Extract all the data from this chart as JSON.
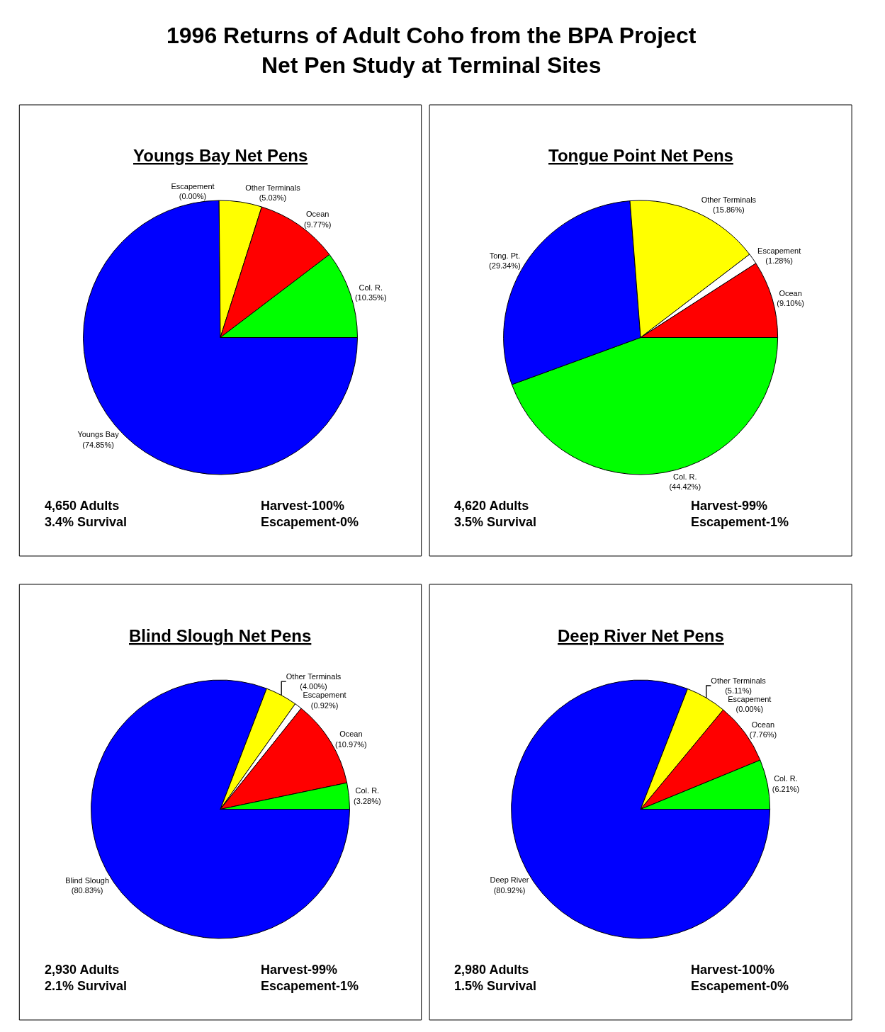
{
  "chart_data": [
    {
      "type": "other",
      "title": "1996 Returns of Adult Coho from the BPA Project\nNet Pen Study at Terminal Sites"
    },
    {
      "type": "pie",
      "title": "Youngs Bay Net Pens",
      "categories": [
        "Youngs Bay",
        "Escapement",
        "Other Terminals",
        "Ocean",
        "Col. R."
      ],
      "values": [
        74.85,
        0.0,
        5.03,
        9.77,
        10.35
      ],
      "value_labels": [
        "(74.85%)",
        "(0.00%)",
        "(5.03%)",
        "(9.77%)",
        "(10.35%)"
      ],
      "colors": [
        "#0000ff",
        "#ffffff",
        "#ffff00",
        "#ff0000",
        "#00ff00"
      ],
      "annotations": [
        "4,650 Adults\n3.4% Survival",
        "Harvest-100%\nEscapement-0%"
      ]
    },
    {
      "type": "pie",
      "title": "Tongue Point Net Pens",
      "categories": [
        "Col. R.",
        "Tong. Pt.",
        "Other Terminals",
        "Escapement",
        "Ocean"
      ],
      "values": [
        44.42,
        29.34,
        15.86,
        1.28,
        9.1
      ],
      "value_labels": [
        "(44.42%)",
        "(29.34%)",
        "(15.86%)",
        "(1.28%)",
        "(9.10%)"
      ],
      "colors": [
        "#00ff00",
        "#0000ff",
        "#ffff00",
        "#ffffff",
        "#ff0000"
      ],
      "annotations": [
        "4,620 Adults\n3.5% Survival",
        "Harvest-99%\nEscapement-1%"
      ]
    },
    {
      "type": "pie",
      "title": "Blind Slough Net Pens",
      "categories": [
        "Blind Slough",
        "Other Terminals",
        "Escapement",
        "Ocean",
        "Col. R."
      ],
      "values": [
        80.83,
        4.0,
        0.92,
        10.97,
        3.28
      ],
      "value_labels": [
        "(80.83%)",
        "(4.00%)",
        "(0.92%)",
        "(10.97%)",
        "(3.28%)"
      ],
      "colors": [
        "#0000ff",
        "#ffff00",
        "#ffffff",
        "#ff0000",
        "#00ff00"
      ],
      "annotations": [
        "2,930 Adults\n2.1% Survival",
        "Harvest-99%\nEscapement-1%"
      ]
    },
    {
      "type": "pie",
      "title": "Deep River Net Pens",
      "categories": [
        "Deep River",
        "Other Terminals",
        "Escapement",
        "Ocean",
        "Col. R."
      ],
      "values": [
        80.92,
        5.11,
        0.0,
        7.76,
        6.21
      ],
      "value_labels": [
        "(80.92%)",
        "(5.11%)",
        "(0.00%)",
        "(7.76%)",
        "(6.21%)"
      ],
      "colors": [
        "#0000ff",
        "#ffff00",
        "#ffffff",
        "#ff0000",
        "#00ff00"
      ],
      "annotations": [
        "2,980 Adults\n1.5% Survival",
        "Harvest-100%\nEscapement-0%"
      ]
    }
  ]
}
